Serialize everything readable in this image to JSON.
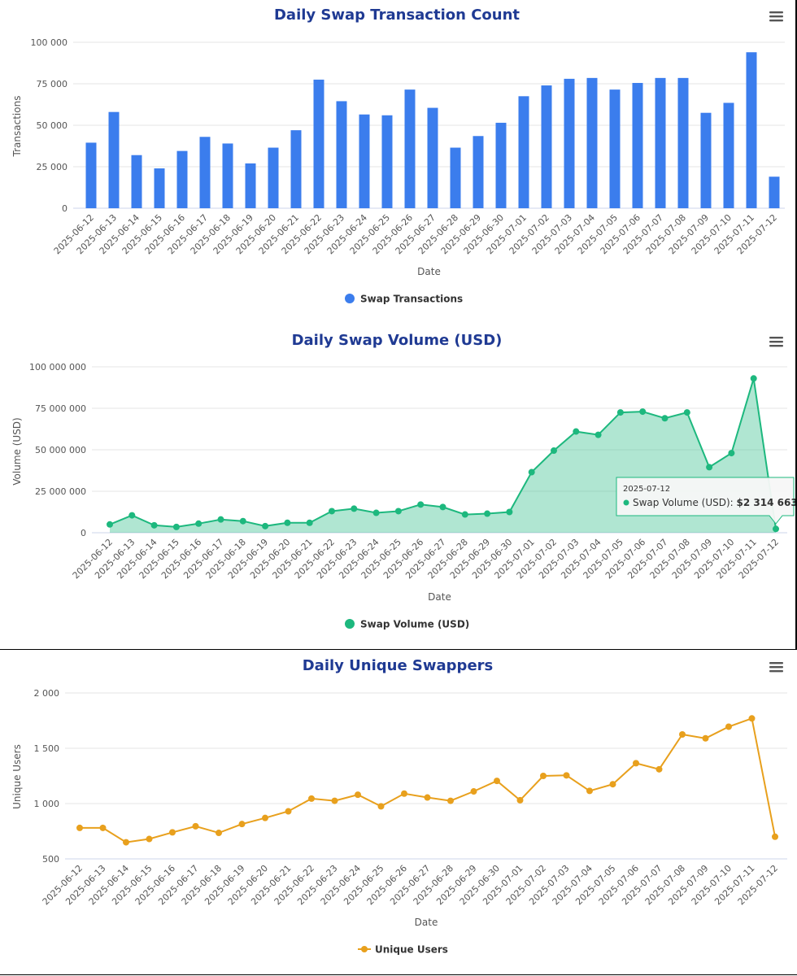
{
  "chart_data": [
    {
      "type": "bar",
      "title": "Daily Swap Transaction Count",
      "xlabel": "Date",
      "ylabel": "Transactions",
      "ylim": [
        0,
        100000
      ],
      "yticks": [
        0,
        25000,
        50000,
        75000,
        100000
      ],
      "ytick_labels": [
        "0",
        "25 000",
        "50 000",
        "75 000",
        "100 000"
      ],
      "categories": [
        "2025-06-12",
        "2025-06-13",
        "2025-06-14",
        "2025-06-15",
        "2025-06-16",
        "2025-06-17",
        "2025-06-18",
        "2025-06-19",
        "2025-06-20",
        "2025-06-21",
        "2025-06-22",
        "2025-06-23",
        "2025-06-24",
        "2025-06-25",
        "2025-06-26",
        "2025-06-27",
        "2025-06-28",
        "2025-06-29",
        "2025-06-30",
        "2025-07-01",
        "2025-07-02",
        "2025-07-03",
        "2025-07-04",
        "2025-07-05",
        "2025-07-06",
        "2025-07-07",
        "2025-07-08",
        "2025-07-09",
        "2025-07-10",
        "2025-07-11",
        "2025-07-12"
      ],
      "series": [
        {
          "name": "Swap Transactions",
          "color": "#3b7ded",
          "values": [
            39500,
            58000,
            32000,
            24000,
            34500,
            43000,
            39000,
            27000,
            36500,
            47000,
            77500,
            64500,
            56500,
            56000,
            71500,
            60500,
            36500,
            43500,
            51500,
            67500,
            74000,
            78000,
            78500,
            71500,
            75500,
            78500,
            78500,
            57500,
            63500,
            94000,
            19000
          ]
        }
      ],
      "legend": "bottom-center",
      "grid": true
    },
    {
      "type": "area",
      "title": "Daily Swap Volume (USD)",
      "xlabel": "Date",
      "ylabel": "Volume (USD)",
      "ylim": [
        0,
        100000000
      ],
      "yticks": [
        0,
        25000000,
        50000000,
        75000000,
        100000000
      ],
      "ytick_labels": [
        "0",
        "25 000 000",
        "50 000 000",
        "75 000 000",
        "100 000 000"
      ],
      "categories": [
        "2025-06-12",
        "2025-06-13",
        "2025-06-14",
        "2025-06-15",
        "2025-06-16",
        "2025-06-17",
        "2025-06-18",
        "2025-06-19",
        "2025-06-20",
        "2025-06-21",
        "2025-06-22",
        "2025-06-23",
        "2025-06-24",
        "2025-06-25",
        "2025-06-26",
        "2025-06-27",
        "2025-06-28",
        "2025-06-29",
        "2025-06-30",
        "2025-07-01",
        "2025-07-02",
        "2025-07-03",
        "2025-07-04",
        "2025-07-05",
        "2025-07-06",
        "2025-07-07",
        "2025-07-08",
        "2025-07-09",
        "2025-07-10",
        "2025-07-11",
        "2025-07-12"
      ],
      "series": [
        {
          "name": "Swap Volume (USD)",
          "color": "#1db87e",
          "values": [
            5000000,
            10500000,
            4500000,
            3500000,
            5500000,
            8000000,
            7000000,
            4000000,
            6000000,
            6000000,
            13000000,
            14500000,
            12000000,
            13000000,
            17000000,
            15500000,
            11000000,
            11500000,
            12500000,
            36500000,
            49500000,
            61000000,
            59000000,
            72500000,
            73000000,
            69000000,
            72500000,
            39500000,
            48000000,
            93000000,
            2314663
          ]
        }
      ],
      "tooltip": {
        "category": "2025-07-12",
        "series": "Swap Volume (USD)",
        "value_label": "$2 314 663"
      },
      "legend": "bottom-center",
      "grid": true
    },
    {
      "type": "line",
      "title": "Daily Unique Swappers",
      "xlabel": "Date",
      "ylabel": "Unique Users",
      "ylim": [
        500,
        2000
      ],
      "yticks": [
        500,
        1000,
        1500,
        2000
      ],
      "ytick_labels": [
        "500",
        "1 000",
        "1 500",
        "2 000"
      ],
      "categories": [
        "2025-06-12",
        "2025-06-13",
        "2025-06-14",
        "2025-06-15",
        "2025-06-16",
        "2025-06-17",
        "2025-06-18",
        "2025-06-19",
        "2025-06-20",
        "2025-06-21",
        "2025-06-22",
        "2025-06-23",
        "2025-06-24",
        "2025-06-25",
        "2025-06-26",
        "2025-06-27",
        "2025-06-28",
        "2025-06-29",
        "2025-06-30",
        "2025-07-01",
        "2025-07-02",
        "2025-07-03",
        "2025-07-04",
        "2025-07-05",
        "2025-07-06",
        "2025-07-07",
        "2025-07-08",
        "2025-07-09",
        "2025-07-10",
        "2025-07-11",
        "2025-07-12"
      ],
      "series": [
        {
          "name": "Unique Users",
          "color": "#e8a01d",
          "values": [
            780,
            780,
            650,
            680,
            740,
            795,
            735,
            815,
            870,
            930,
            1045,
            1025,
            1080,
            975,
            1090,
            1055,
            1025,
            1110,
            1205,
            1030,
            1250,
            1255,
            1115,
            1175,
            1365,
            1310,
            1625,
            1590,
            1695,
            1770,
            700
          ]
        }
      ],
      "legend": "bottom-center",
      "grid": true
    }
  ]
}
